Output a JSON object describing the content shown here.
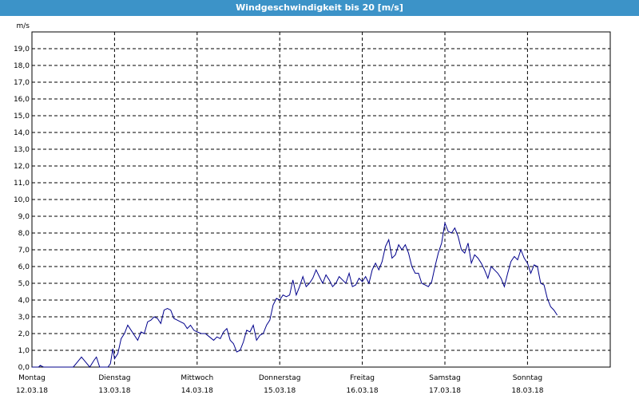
{
  "title": "Windgeschwindigkeit bis 20 [m/s]",
  "colors": {
    "header": "#3c93c8",
    "line": "#00008b",
    "grid": "#000000"
  },
  "chart_data": {
    "type": "line",
    "title": "Windgeschwindigkeit bis 20 [m/s]",
    "ylabel": "m/s",
    "ylim": [
      0,
      20
    ],
    "yticks": [
      "0,0",
      "1,0",
      "2,0",
      "3,0",
      "4,0",
      "5,0",
      "6,0",
      "7,0",
      "8,0",
      "9,0",
      "10,0",
      "11,0",
      "12,0",
      "13,0",
      "14,0",
      "15,0",
      "16,0",
      "17,0",
      "18,0",
      "19,0"
    ],
    "grid": true,
    "days": [
      {
        "day": "Montag",
        "date": "12.03.18"
      },
      {
        "day": "Dienstag",
        "date": "13.03.18"
      },
      {
        "day": "Mittwoch",
        "date": "14.03.18"
      },
      {
        "day": "Donnerstag",
        "date": "15.03.18"
      },
      {
        "day": "Freitag",
        "date": "16.03.18"
      },
      {
        "day": "Samstag",
        "date": "17.03.18"
      },
      {
        "day": "Sonntag",
        "date": "18.03.18"
      }
    ],
    "series": [
      {
        "points": [
          [
            0,
            0.0
          ],
          [
            0.08,
            0.0
          ],
          [
            0.1,
            0.1
          ],
          [
            0.14,
            0.0
          ],
          [
            0.5,
            0.0
          ],
          [
            0.55,
            0.3
          ],
          [
            0.6,
            0.6
          ],
          [
            0.65,
            0.3
          ],
          [
            0.7,
            0.0
          ],
          [
            0.75,
            0.4
          ],
          [
            0.78,
            0.6
          ],
          [
            0.82,
            0.0
          ],
          [
            0.92,
            0.0
          ],
          [
            0.95,
            0.2
          ],
          [
            0.98,
            1.1
          ],
          [
            1.0,
            0.5
          ],
          [
            1.04,
            0.8
          ],
          [
            1.08,
            1.7
          ],
          [
            1.12,
            2.0
          ],
          [
            1.16,
            2.5
          ],
          [
            1.2,
            2.2
          ],
          [
            1.24,
            1.9
          ],
          [
            1.28,
            1.6
          ],
          [
            1.32,
            2.1
          ],
          [
            1.36,
            2.0
          ],
          [
            1.4,
            2.7
          ],
          [
            1.44,
            2.8
          ],
          [
            1.48,
            3.0
          ],
          [
            1.52,
            2.9
          ],
          [
            1.56,
            2.6
          ],
          [
            1.6,
            3.4
          ],
          [
            1.64,
            3.5
          ],
          [
            1.68,
            3.4
          ],
          [
            1.72,
            2.9
          ],
          [
            1.76,
            2.8
          ],
          [
            1.8,
            2.7
          ],
          [
            1.84,
            2.6
          ],
          [
            1.88,
            2.3
          ],
          [
            1.92,
            2.5
          ],
          [
            1.96,
            2.2
          ],
          [
            2.0,
            2.1
          ],
          [
            2.05,
            2.0
          ],
          [
            2.1,
            2.0
          ],
          [
            2.15,
            1.8
          ],
          [
            2.2,
            1.6
          ],
          [
            2.24,
            1.8
          ],
          [
            2.28,
            1.7
          ],
          [
            2.32,
            2.1
          ],
          [
            2.36,
            2.3
          ],
          [
            2.4,
            1.6
          ],
          [
            2.44,
            1.4
          ],
          [
            2.48,
            0.9
          ],
          [
            2.52,
            1.0
          ],
          [
            2.56,
            1.5
          ],
          [
            2.6,
            2.2
          ],
          [
            2.64,
            2.1
          ],
          [
            2.68,
            2.5
          ],
          [
            2.72,
            1.6
          ],
          [
            2.76,
            1.9
          ],
          [
            2.8,
            2.0
          ],
          [
            2.84,
            2.5
          ],
          [
            2.88,
            2.8
          ],
          [
            2.92,
            3.7
          ],
          [
            2.96,
            4.1
          ],
          [
            3.0,
            4.0
          ],
          [
            3.04,
            4.3
          ],
          [
            3.08,
            4.2
          ],
          [
            3.12,
            4.3
          ],
          [
            3.16,
            5.2
          ],
          [
            3.2,
            4.3
          ],
          [
            3.24,
            4.8
          ],
          [
            3.28,
            5.4
          ],
          [
            3.32,
            4.8
          ],
          [
            3.36,
            5.0
          ],
          [
            3.4,
            5.3
          ],
          [
            3.44,
            5.8
          ],
          [
            3.48,
            5.4
          ],
          [
            3.52,
            5.0
          ],
          [
            3.56,
            5.5
          ],
          [
            3.6,
            5.2
          ],
          [
            3.64,
            4.8
          ],
          [
            3.68,
            5.0
          ],
          [
            3.72,
            5.4
          ],
          [
            3.76,
            5.2
          ],
          [
            3.8,
            5.0
          ],
          [
            3.84,
            5.6
          ],
          [
            3.88,
            4.8
          ],
          [
            3.92,
            4.9
          ],
          [
            3.96,
            5.3
          ],
          [
            4.0,
            5.1
          ],
          [
            4.04,
            5.4
          ],
          [
            4.08,
            5.0
          ],
          [
            4.12,
            5.8
          ],
          [
            4.16,
            6.2
          ],
          [
            4.2,
            5.8
          ],
          [
            4.24,
            6.3
          ],
          [
            4.28,
            7.2
          ],
          [
            4.32,
            7.6
          ],
          [
            4.36,
            6.5
          ],
          [
            4.4,
            6.7
          ],
          [
            4.44,
            7.3
          ],
          [
            4.48,
            7.0
          ],
          [
            4.52,
            7.3
          ],
          [
            4.56,
            6.8
          ],
          [
            4.6,
            6.0
          ],
          [
            4.64,
            5.6
          ],
          [
            4.68,
            5.6
          ],
          [
            4.72,
            5.0
          ],
          [
            4.76,
            4.9
          ],
          [
            4.8,
            4.8
          ],
          [
            4.84,
            5.1
          ],
          [
            4.88,
            6.0
          ],
          [
            4.92,
            6.8
          ],
          [
            4.96,
            7.4
          ],
          [
            5.0,
            8.6
          ],
          [
            5.04,
            8.1
          ],
          [
            5.08,
            8.0
          ],
          [
            5.12,
            8.3
          ],
          [
            5.16,
            7.8
          ],
          [
            5.2,
            7.0
          ],
          [
            5.24,
            6.8
          ],
          [
            5.28,
            7.4
          ],
          [
            5.32,
            6.2
          ],
          [
            5.36,
            6.7
          ],
          [
            5.4,
            6.5
          ],
          [
            5.44,
            6.2
          ],
          [
            5.48,
            5.8
          ],
          [
            5.52,
            5.3
          ],
          [
            5.56,
            6.0
          ],
          [
            5.6,
            5.8
          ],
          [
            5.64,
            5.6
          ],
          [
            5.68,
            5.3
          ],
          [
            5.72,
            4.8
          ],
          [
            5.76,
            5.6
          ],
          [
            5.8,
            6.3
          ],
          [
            5.84,
            6.6
          ],
          [
            5.88,
            6.4
          ],
          [
            5.92,
            7.0
          ],
          [
            5.96,
            6.5
          ],
          [
            6.0,
            6.2
          ],
          [
            6.04,
            5.6
          ],
          [
            6.08,
            6.1
          ],
          [
            6.12,
            6.0
          ],
          [
            6.16,
            5.0
          ],
          [
            6.2,
            4.9
          ],
          [
            6.24,
            4.1
          ],
          [
            6.28,
            3.6
          ],
          [
            6.32,
            3.4
          ],
          [
            6.36,
            3.1
          ]
        ]
      }
    ]
  }
}
